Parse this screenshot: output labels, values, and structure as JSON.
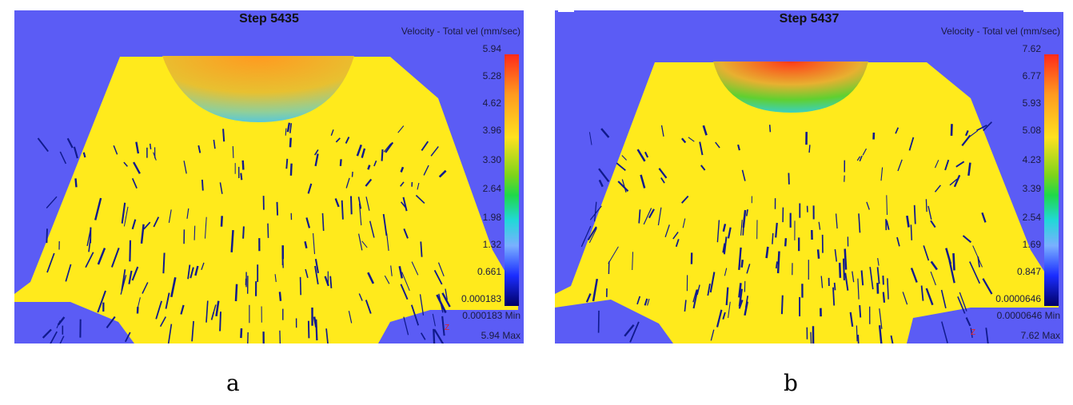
{
  "panels": [
    {
      "step": "Step 5435",
      "legend_title": "Velocity - Total vel (mm/sec)",
      "ticks": [
        "5.94",
        "5.28",
        "4.62",
        "3.96",
        "3.30",
        "2.64",
        "1.98",
        "1.32",
        "0.661",
        "0.000183"
      ],
      "min_value": "0.000183",
      "min_label": "Min",
      "max_value": "5.94",
      "max_label": "Max",
      "axis": "Z",
      "letter": "a"
    },
    {
      "step": "Step 5437",
      "legend_title": "Velocity - Total vel (mm/sec)",
      "ticks": [
        "7.62",
        "6.77",
        "5.93",
        "5.08",
        "4.23",
        "3.39",
        "2.54",
        "1.69",
        "0.847",
        "0.0000646"
      ],
      "min_value": "0.0000646",
      "min_label": "Min",
      "max_value": "7.62",
      "max_label": "Max",
      "axis": "Z",
      "letter": "b"
    }
  ],
  "colors": {
    "background": "#5b5cf5",
    "material": "#ffea1c",
    "vectors": "#101a8c"
  }
}
